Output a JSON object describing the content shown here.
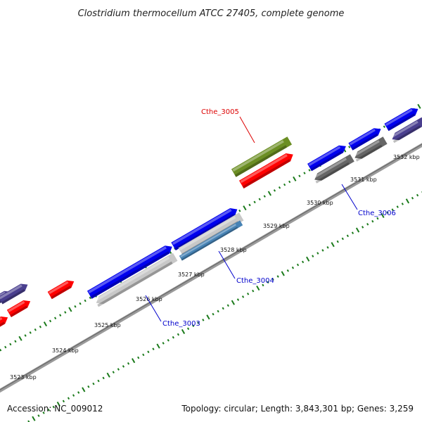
{
  "title": "Clostridium thermocellum ATCC 27405, complete genome",
  "footer": {
    "accession": "Accession: NC_009012",
    "topology": "Topology: circular; Length: 3,843,301 bp; Genes: 3,259"
  },
  "tick_labels": [
    "3523 kbp",
    "3524 kbp",
    "3525 kbp",
    "3526 kbp",
    "3527 kbp",
    "3528 kbp",
    "3529 kbp",
    "3530 kbp",
    "3531 kbp",
    "3532 kbp"
  ],
  "gene_labels": {
    "cthe_3003": "Cthe_3003",
    "cthe_3004": "Cthe_3004",
    "cthe_3005": "Cthe_3005",
    "cthe_3006": "Cthe_3006"
  },
  "colors": {
    "cds_forward": "#0000ee",
    "cds_reverse": "#ff0000",
    "cds_other": "#4a3f8f",
    "rna": "#6b8e23",
    "gray_feature": "#666666",
    "light_feature": "#c8c8c8",
    "steel_feature": "#4682b4",
    "backbone": "#808080",
    "ticks": "#1a7a1a",
    "label_red": "#dd0000",
    "label_blue": "#0000cc"
  }
}
